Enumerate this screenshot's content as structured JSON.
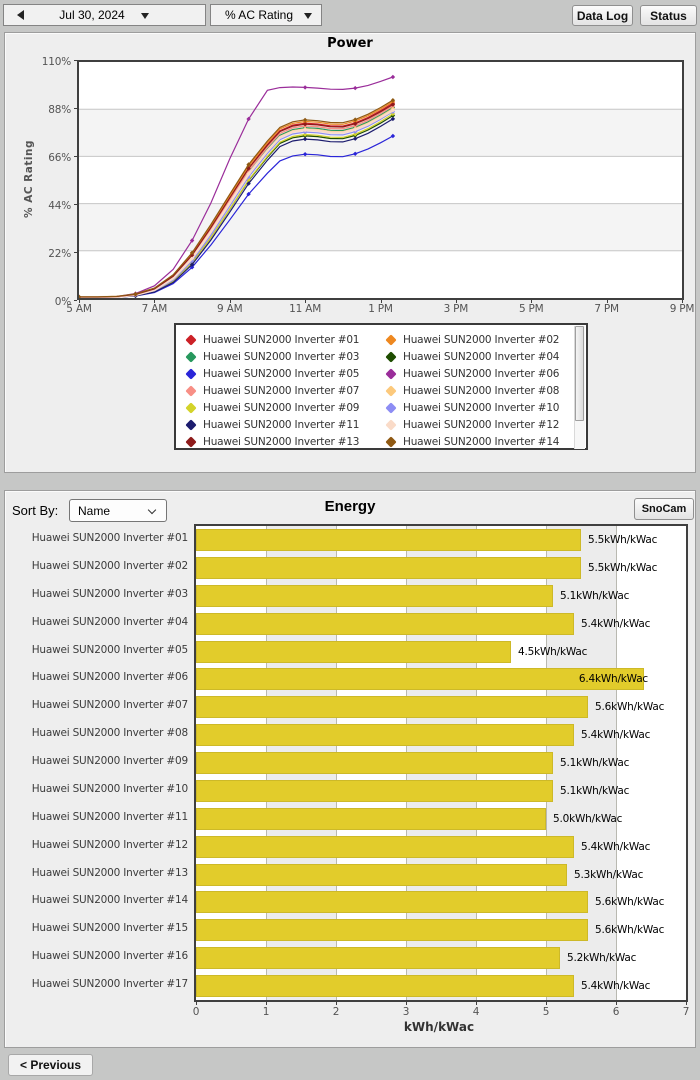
{
  "toolbar": {
    "date_value": "Jul 30, 2024",
    "metric_value": "% AC Rating",
    "data_log_label": "Data Log",
    "status_label": "Status"
  },
  "energy_header": {
    "sort_by_label": "Sort By:",
    "sort_value": "Name",
    "snocam_label": "SnoCam"
  },
  "footer": {
    "previous_label": "< Previous"
  },
  "chart_data": [
    {
      "type": "line",
      "title": "Power",
      "ylabel": "% AC Rating",
      "ylim": [
        0,
        110
      ],
      "ytick_labels": [
        "0%",
        "22%",
        "44%",
        "66%",
        "88%",
        "110%"
      ],
      "xlim_hours": [
        5,
        21
      ],
      "xtick_labels": [
        "5 AM",
        "7 AM",
        "9 AM",
        "11 AM",
        "1 PM",
        "3 PM",
        "5 PM",
        "7 PM",
        "9 PM"
      ],
      "x_hours": [
        5,
        5.5,
        6,
        6.5,
        7,
        7.5,
        8,
        8.5,
        9,
        9.5,
        10,
        10.33,
        10.67,
        11,
        11.33,
        11.67,
        12,
        12.33,
        12.67,
        13,
        13.33
      ],
      "shape_normalized": [
        0.004,
        0.004,
        0.006,
        0.015,
        0.04,
        0.1,
        0.205,
        0.345,
        0.5,
        0.655,
        0.78,
        0.853,
        0.883,
        0.893,
        0.889,
        0.879,
        0.878,
        0.895,
        0.924,
        0.96,
        1.0
      ],
      "shape_purple": [
        0.004,
        0.004,
        0.007,
        0.02,
        0.055,
        0.13,
        0.26,
        0.43,
        0.63,
        0.81,
        0.94,
        0.952,
        0.955,
        0.953,
        0.95,
        0.945,
        0.944,
        0.95,
        0.962,
        0.98,
        1.0
      ],
      "note": "series y values (% AC Rating) = final_percent x shape^rise_exp (shape_purple for #06)",
      "series": [
        {
          "name": "Huawei SUN2000 Inverter #01",
          "color": "#cc2127",
          "final_percent": 90.8,
          "rise_exp": 0.96,
          "width": 1.2
        },
        {
          "name": "Huawei SUN2000 Inverter #02",
          "color": "#ee8820",
          "final_percent": 91.5,
          "rise_exp": 0.94,
          "width": 1.2
        },
        {
          "name": "Huawei SUN2000 Inverter #03",
          "color": "#27985d",
          "final_percent": 88.8,
          "rise_exp": 0.99,
          "width": 1.2
        },
        {
          "name": "Huawei SUN2000 Inverter #04",
          "color": "#1e4d00",
          "final_percent": 85.0,
          "rise_exp": 1.04,
          "width": 1.2
        },
        {
          "name": "Huawei SUN2000 Inverter #05",
          "color": "#2a25d8",
          "final_percent": 75.5,
          "rise_exp": 1.05,
          "width": 1.2
        },
        {
          "name": "Huawei SUN2000 Inverter #06",
          "color": "#9a2d9a",
          "final_percent": 103.0,
          "rise_exp": 1.0,
          "width": 1.2
        },
        {
          "name": "Huawei SUN2000 Inverter #07",
          "color": "#f88f86",
          "final_percent": 89.5,
          "rise_exp": 0.97,
          "width": 1.4
        },
        {
          "name": "Huawei SUN2000 Inverter #08",
          "color": "#fcc97c",
          "final_percent": 88.2,
          "rise_exp": 1.0,
          "width": 1.6
        },
        {
          "name": "Huawei SUN2000 Inverter #09",
          "color": "#d3d32a",
          "final_percent": 85.8,
          "rise_exp": 1.05,
          "width": 1.2
        },
        {
          "name": "Huawei SUN2000 Inverter #10",
          "color": "#8d8df4",
          "final_percent": 86.8,
          "rise_exp": 1.02,
          "width": 1.2
        },
        {
          "name": "Huawei SUN2000 Inverter #11",
          "color": "#1c1c6e",
          "final_percent": 83.5,
          "rise_exp": 1.06,
          "width": 1.2
        },
        {
          "name": "Huawei SUN2000 Inverter #12",
          "color": "#fadbc8",
          "final_percent": 87.5,
          "rise_exp": 0.98,
          "width": 2.4
        },
        {
          "name": "Huawei SUN2000 Inverter #13",
          "color": "#8e1b1b",
          "final_percent": 90.2,
          "rise_exp": 0.95,
          "width": 1.2
        },
        {
          "name": "Huawei SUN2000 Inverter #14",
          "color": "#8f5913",
          "final_percent": 92.2,
          "rise_exp": 0.93,
          "width": 1.2
        }
      ]
    },
    {
      "type": "bar",
      "orientation": "horizontal",
      "title": "Energy",
      "xlabel": "kWh/kWac",
      "xlim": [
        0,
        7
      ],
      "xtick_labels": [
        "0",
        "1",
        "2",
        "3",
        "4",
        "5",
        "6",
        "7"
      ],
      "bar_color": "#e2cc2b",
      "value_suffix": "kWh/kWac",
      "categories": [
        "Huawei SUN2000 Inverter #01",
        "Huawei SUN2000 Inverter #02",
        "Huawei SUN2000 Inverter #03",
        "Huawei SUN2000 Inverter #04",
        "Huawei SUN2000 Inverter #05",
        "Huawei SUN2000 Inverter #06",
        "Huawei SUN2000 Inverter #07",
        "Huawei SUN2000 Inverter #08",
        "Huawei SUN2000 Inverter #09",
        "Huawei SUN2000 Inverter #10",
        "Huawei SUN2000 Inverter #11",
        "Huawei SUN2000 Inverter #12",
        "Huawei SUN2000 Inverter #13",
        "Huawei SUN2000 Inverter #14",
        "Huawei SUN2000 Inverter #15",
        "Huawei SUN2000 Inverter #16",
        "Huawei SUN2000 Inverter #17"
      ],
      "values": [
        5.5,
        5.5,
        5.1,
        5.4,
        4.5,
        6.4,
        5.6,
        5.4,
        5.1,
        5.1,
        5.0,
        5.4,
        5.3,
        5.6,
        5.6,
        5.2,
        5.4
      ]
    }
  ]
}
